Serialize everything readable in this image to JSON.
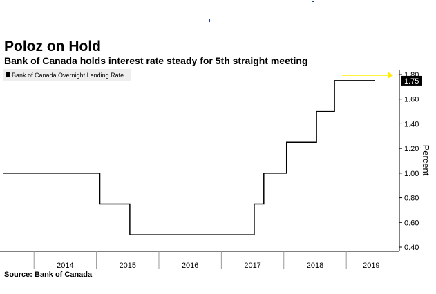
{
  "header": {
    "title": "Poloz on Hold",
    "subtitle": "Bank of Canada holds interest rate steady for 5th straight meeting"
  },
  "footer": {
    "source": "Source:  Bank of Canada"
  },
  "colors": {
    "line": "#000000",
    "arrow": "#ffee00",
    "legend_bg": "#eeeeee",
    "axis": "#000000",
    "badge_bg": "#000000",
    "badge_text": "#ffffff"
  },
  "chart_data": {
    "type": "line",
    "step": true,
    "ylabel": "Percent",
    "ylim": [
      0.4,
      1.8
    ],
    "xlim": [
      2013.5,
      2019.85
    ],
    "yticks": [
      0.4,
      0.6,
      0.8,
      1.0,
      1.2,
      1.4,
      1.6,
      1.8
    ],
    "ytick_labels": [
      "0.40",
      "0.60",
      "0.80",
      "1.00",
      "1.20",
      "1.40",
      "1.60",
      "1.80"
    ],
    "x_boundaries": [
      2014,
      2015,
      2016,
      2017,
      2018,
      2019
    ],
    "x_labels": [
      {
        "label": "2014",
        "center": 2014.5
      },
      {
        "label": "2015",
        "center": 2015.5
      },
      {
        "label": "2016",
        "center": 2016.5
      },
      {
        "label": "2017",
        "center": 2017.5
      },
      {
        "label": "2018",
        "center": 2018.5
      },
      {
        "label": "2019",
        "center": 2019.4
      }
    ],
    "series": [
      {
        "name": "Bank of Canada Overnight Lending Rate",
        "points": [
          [
            "2014-01-01",
            1.0
          ],
          [
            "2015-01-21",
            0.75
          ],
          [
            "2015-07-15",
            0.5
          ],
          [
            "2017-07-12",
            0.75
          ],
          [
            "2017-09-06",
            1.0
          ],
          [
            "2018-01-17",
            1.25
          ],
          [
            "2018-07-11",
            1.5
          ],
          [
            "2018-10-24",
            1.75
          ],
          [
            "2019-06-15",
            1.75
          ]
        ],
        "last_value_label": "1.75"
      }
    ],
    "legend_position": "top-left",
    "grid": false,
    "annotation": "arrow pointing right to the latest value"
  }
}
